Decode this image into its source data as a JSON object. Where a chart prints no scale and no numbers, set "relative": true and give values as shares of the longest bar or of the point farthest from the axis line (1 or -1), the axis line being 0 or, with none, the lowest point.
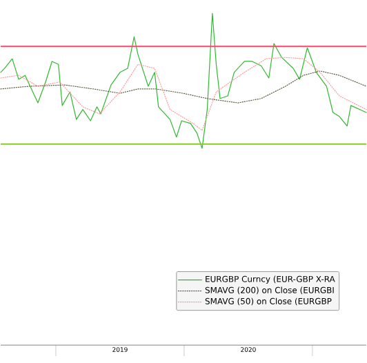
{
  "chart_data": {
    "type": "line",
    "relative": true,
    "legend": "bottom right",
    "xlim": [
      2018.57,
      2021.42
    ],
    "xticks": [
      {
        "value": 2019,
        "label": null
      },
      {
        "value": 2019.5,
        "label": "2019"
      },
      {
        "value": 2020,
        "label": null
      },
      {
        "value": 2020.5,
        "label": "2020"
      },
      {
        "value": 2021,
        "label": null
      }
    ],
    "series": [
      {
        "name": "EURGBP Curncy (EUR-GBP X-RA",
        "color": "#2db82d",
        "line_style": "solid",
        "x": [
          2018.57,
          2018.6,
          2018.66,
          2018.71,
          2018.76,
          2018.86,
          2018.92,
          2018.97,
          2019.02,
          2019.05,
          2019.11,
          2019.16,
          2019.21,
          2019.27,
          2019.32,
          2019.35,
          2019.43,
          2019.5,
          2019.56,
          2019.61,
          2019.64,
          2019.72,
          2019.77,
          2019.8,
          2019.89,
          2019.94,
          2019.98,
          2020.05,
          2020.1,
          2020.14,
          2020.18,
          2020.22,
          2020.25,
          2020.28,
          2020.34,
          2020.39,
          2020.47,
          2020.53,
          2020.6,
          2020.66,
          2020.7,
          2020.76,
          2020.85,
          2020.9,
          2020.96,
          2021.03,
          2021.11,
          2021.16,
          2021.21,
          2021.27,
          2021.3,
          2021.37,
          2021.42
        ],
        "values": [
          0.822,
          0.834,
          0.863,
          0.801,
          0.813,
          0.73,
          0.793,
          0.855,
          0.846,
          0.722,
          0.763,
          0.68,
          0.71,
          0.676,
          0.718,
          0.697,
          0.784,
          0.822,
          0.834,
          0.929,
          0.876,
          0.78,
          0.822,
          0.718,
          0.68,
          0.627,
          0.676,
          0.668,
          0.639,
          0.593,
          0.71,
          1.0,
          0.846,
          0.743,
          0.751,
          0.822,
          0.855,
          0.855,
          0.842,
          0.805,
          0.909,
          0.867,
          0.834,
          0.801,
          0.896,
          0.822,
          0.78,
          0.701,
          0.689,
          0.66,
          0.722,
          0.71,
          0.701
        ]
      },
      {
        "name": "SMAVG (200)  on Close (EURGBI",
        "color": "#5a5a3c",
        "line_style": "dotted",
        "x": [
          2018.57,
          2018.79,
          2019.07,
          2019.29,
          2019.5,
          2019.64,
          2019.78,
          2019.99,
          2020.18,
          2020.42,
          2020.6,
          2020.79,
          2020.93,
          2021.06,
          2021.21,
          2021.42
        ],
        "values": [
          0.772,
          0.78,
          0.784,
          0.772,
          0.759,
          0.772,
          0.772,
          0.759,
          0.743,
          0.73,
          0.743,
          0.78,
          0.813,
          0.826,
          0.813,
          0.78
        ]
      },
      {
        "name": "SMAVG (50)  on Close (EURGBP",
        "color": "#ff9999",
        "line_style": "dotted",
        "x": [
          2018.57,
          2018.71,
          2018.86,
          2019.03,
          2019.21,
          2019.34,
          2019.5,
          2019.64,
          2019.77,
          2019.89,
          2020.07,
          2020.14,
          2020.25,
          2020.36,
          2020.47,
          2020.64,
          2020.79,
          2020.93,
          2021.06,
          2021.21,
          2021.42
        ],
        "values": [
          0.805,
          0.813,
          0.78,
          0.793,
          0.718,
          0.697,
          0.763,
          0.846,
          0.834,
          0.71,
          0.668,
          0.647,
          0.763,
          0.793,
          0.822,
          0.863,
          0.867,
          0.863,
          0.822,
          0.751,
          0.71
        ]
      }
    ],
    "ref_lines": [
      {
        "axis": "y",
        "value": 0.9,
        "color": "#ff4466"
      },
      {
        "axis": "y",
        "value": 0.606,
        "color": "#88cc22"
      }
    ]
  }
}
